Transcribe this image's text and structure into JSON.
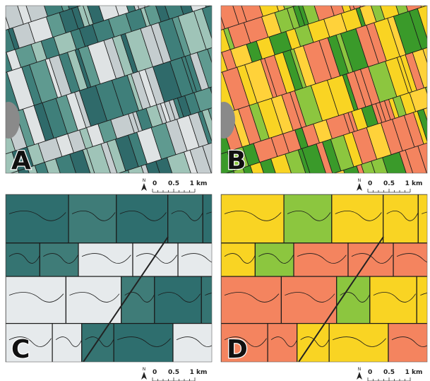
{
  "panels": [
    {
      "label": "A",
      "north": "N",
      "scale": [
        "0",
        "0.5",
        "1 km"
      ]
    },
    {
      "label": "B",
      "north": "N",
      "scale": [
        "0",
        "0.5",
        "1 km"
      ]
    },
    {
      "label": "C",
      "north": "N",
      "scale": [
        "0",
        "0.5",
        "1 km"
      ]
    },
    {
      "label": "D",
      "north": "N",
      "scale": [
        "0",
        "0.5",
        "1 km"
      ]
    }
  ]
}
